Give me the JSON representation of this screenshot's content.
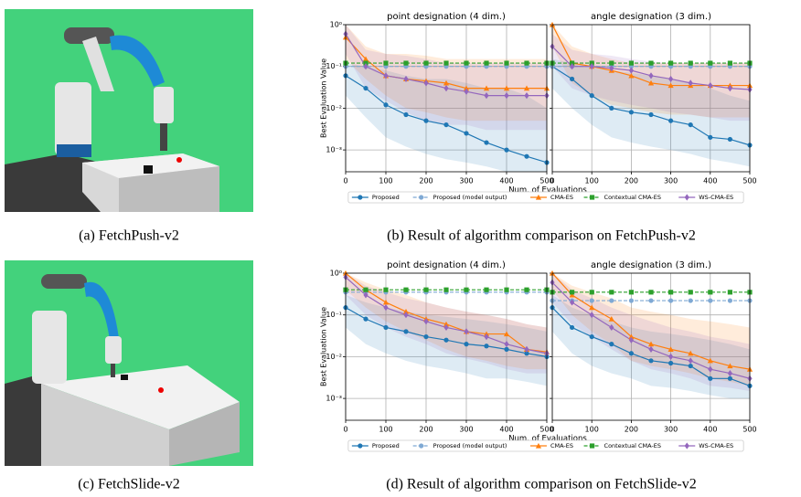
{
  "captions": [
    "(a) FetchPush-v2",
    "(b) Result of algorithm comparison on FetchPush-v2",
    "(c) FetchSlide-v2",
    "(d) Result of algorithm comparison on FetchSlide-v2"
  ],
  "chart_data": [
    {
      "type": "line",
      "title": "point designation (4 dim.)",
      "xlabel": "Num. of Evaluations",
      "ylabel": "Best Evaluation Value",
      "log_y": true,
      "grid": true,
      "legend": "below",
      "x": [
        0,
        50,
        100,
        150,
        200,
        250,
        300,
        350,
        400,
        450,
        500
      ],
      "xlim": [
        0,
        500
      ],
      "xticks": [
        0,
        100,
        200,
        300,
        400,
        500
      ],
      "ylim": [
        0.0003,
        1
      ],
      "yticks": [
        {
          "value": 1,
          "label": "10⁰"
        },
        {
          "value": 0.1,
          "label": "10⁻¹"
        },
        {
          "value": 0.01,
          "label": "10⁻²"
        },
        {
          "value": 0.001,
          "label": "10⁻³"
        }
      ],
      "series": [
        {
          "name": "Proposed",
          "color": "#1f77b4",
          "marker": "circle",
          "dash": false,
          "values": [
            0.06,
            0.03,
            0.012,
            0.007,
            0.005,
            0.004,
            0.0025,
            0.0015,
            0.001,
            0.0007,
            0.0005
          ],
          "lower": [
            0.02,
            0.006,
            0.002,
            0.0012,
            0.0008,
            0.0006,
            0.0005,
            0.0004,
            0.0003,
            0.0003,
            0.0003
          ],
          "upper": [
            0.12,
            0.1,
            0.08,
            0.06,
            0.05,
            0.05,
            0.04,
            0.03,
            0.03,
            0.02,
            0.01
          ]
        },
        {
          "name": "Proposed (model output)",
          "color": "#7fa9d4",
          "marker": "circle",
          "dash": true,
          "values": [
            0.1,
            0.1,
            0.1,
            0.1,
            0.1,
            0.1,
            0.1,
            0.1,
            0.1,
            0.1,
            0.1
          ]
        },
        {
          "name": "CMA-ES",
          "color": "#ff7f0e",
          "marker": "triangle",
          "dash": false,
          "values": [
            0.5,
            0.15,
            0.06,
            0.05,
            0.045,
            0.04,
            0.03,
            0.03,
            0.03,
            0.03,
            0.03
          ],
          "lower": [
            0.15,
            0.05,
            0.02,
            0.01,
            0.008,
            0.006,
            0.005,
            0.005,
            0.005,
            0.005,
            0.005
          ],
          "upper": [
            1,
            0.3,
            0.2,
            0.2,
            0.18,
            0.15,
            0.15,
            0.15,
            0.15,
            0.15,
            0.15
          ]
        },
        {
          "name": "Contextual CMA-ES",
          "color": "#2ca02c",
          "marker": "square",
          "dash": true,
          "values": [
            0.12,
            0.12,
            0.12,
            0.12,
            0.12,
            0.12,
            0.12,
            0.12,
            0.12,
            0.12,
            0.12
          ]
        },
        {
          "name": "WS-CMA-ES",
          "color": "#9467bd",
          "marker": "diamond",
          "dash": false,
          "values": [
            0.6,
            0.1,
            0.06,
            0.05,
            0.04,
            0.03,
            0.025,
            0.02,
            0.02,
            0.02,
            0.02
          ],
          "lower": [
            0.2,
            0.03,
            0.015,
            0.008,
            0.005,
            0.004,
            0.004,
            0.003,
            0.003,
            0.003,
            0.003
          ],
          "upper": [
            1,
            0.25,
            0.2,
            0.18,
            0.15,
            0.12,
            0.12,
            0.12,
            0.12,
            0.12,
            0.12
          ]
        }
      ]
    },
    {
      "type": "line",
      "title": "angle designation (3 dim.)",
      "log_y": true,
      "grid": true,
      "x": [
        0,
        50,
        100,
        150,
        200,
        250,
        300,
        350,
        400,
        450,
        500
      ],
      "xlim": [
        0,
        500
      ],
      "xticks": [
        0,
        100,
        200,
        300,
        400,
        500
      ],
      "ylim": [
        0.0003,
        1
      ],
      "yticks": [
        1,
        0.1,
        0.01,
        0.001
      ],
      "series": [
        {
          "color": "#1f77b4",
          "marker": "circle",
          "dash": false,
          "values": [
            0.1,
            0.05,
            0.02,
            0.01,
            0.008,
            0.007,
            0.005,
            0.004,
            0.002,
            0.0018,
            0.0013
          ],
          "lower": [
            0.03,
            0.01,
            0.004,
            0.002,
            0.0015,
            0.0012,
            0.001,
            0.0008,
            0.0006,
            0.0005,
            0.0004
          ],
          "upper": [
            0.15,
            0.12,
            0.1,
            0.08,
            0.07,
            0.06,
            0.05,
            0.04,
            0.03,
            0.02,
            0.015
          ]
        },
        {
          "color": "#7fa9d4",
          "marker": "circle",
          "dash": true,
          "values": [
            0.1,
            0.1,
            0.1,
            0.1,
            0.1,
            0.1,
            0.1,
            0.1,
            0.1,
            0.1,
            0.1
          ]
        },
        {
          "color": "#ff7f0e",
          "marker": "triangle",
          "dash": false,
          "values": [
            1,
            0.12,
            0.1,
            0.08,
            0.06,
            0.04,
            0.035,
            0.035,
            0.035,
            0.035,
            0.035
          ],
          "lower": [
            0.3,
            0.04,
            0.02,
            0.012,
            0.01,
            0.008,
            0.007,
            0.007,
            0.006,
            0.006,
            0.006
          ],
          "upper": [
            1,
            0.3,
            0.2,
            0.15,
            0.12,
            0.12,
            0.12,
            0.12,
            0.12,
            0.12,
            0.12
          ]
        },
        {
          "color": "#2ca02c",
          "marker": "square",
          "dash": true,
          "values": [
            0.12,
            0.12,
            0.12,
            0.12,
            0.12,
            0.12,
            0.12,
            0.12,
            0.12,
            0.12,
            0.12
          ]
        },
        {
          "color": "#9467bd",
          "marker": "diamond",
          "dash": false,
          "values": [
            0.3,
            0.1,
            0.1,
            0.09,
            0.08,
            0.06,
            0.05,
            0.04,
            0.035,
            0.03,
            0.028
          ],
          "lower": [
            0.1,
            0.03,
            0.02,
            0.015,
            0.012,
            0.01,
            0.008,
            0.007,
            0.006,
            0.005,
            0.005
          ],
          "upper": [
            0.6,
            0.25,
            0.2,
            0.18,
            0.15,
            0.13,
            0.12,
            0.12,
            0.12,
            0.12,
            0.12
          ]
        }
      ]
    },
    {
      "type": "line",
      "title": "point designation (4 dim.)",
      "xlabel": "Num. of Evaluations",
      "ylabel": "Best Evaluation Value",
      "log_y": true,
      "grid": true,
      "legend": "below",
      "x": [
        0,
        50,
        100,
        150,
        200,
        250,
        300,
        350,
        400,
        450,
        500
      ],
      "xlim": [
        0,
        500
      ],
      "xticks": [
        0,
        100,
        200,
        300,
        400,
        500
      ],
      "ylim": [
        0.0003,
        1
      ],
      "yticks": [
        {
          "value": 1,
          "label": "10⁰"
        },
        {
          "value": 0.1,
          "label": "10⁻¹"
        },
        {
          "value": 0.01,
          "label": "10⁻²"
        },
        {
          "value": 0.001,
          "label": "10⁻³"
        }
      ],
      "series": [
        {
          "name": "Proposed",
          "color": "#1f77b4",
          "marker": "circle",
          "dash": false,
          "values": [
            0.15,
            0.08,
            0.05,
            0.04,
            0.03,
            0.025,
            0.02,
            0.018,
            0.015,
            0.012,
            0.01
          ],
          "lower": [
            0.05,
            0.02,
            0.012,
            0.008,
            0.006,
            0.005,
            0.004,
            0.003,
            0.003,
            0.0025,
            0.002
          ],
          "upper": [
            0.3,
            0.2,
            0.15,
            0.12,
            0.1,
            0.09,
            0.08,
            0.07,
            0.06,
            0.05,
            0.04
          ]
        },
        {
          "name": "Proposed (model output)",
          "color": "#7fa9d4",
          "marker": "circle",
          "dash": true,
          "values": [
            0.35,
            0.35,
            0.35,
            0.35,
            0.35,
            0.35,
            0.35,
            0.35,
            0.35,
            0.35,
            0.35
          ]
        },
        {
          "name": "CMA-ES",
          "color": "#ff7f0e",
          "marker": "triangle",
          "dash": false,
          "values": [
            1,
            0.4,
            0.2,
            0.12,
            0.08,
            0.06,
            0.04,
            0.035,
            0.035,
            0.015,
            0.013
          ],
          "lower": [
            0.4,
            0.15,
            0.07,
            0.04,
            0.025,
            0.015,
            0.01,
            0.008,
            0.006,
            0.005,
            0.005
          ],
          "upper": [
            1,
            0.6,
            0.4,
            0.3,
            0.2,
            0.15,
            0.12,
            0.1,
            0.08,
            0.06,
            0.05
          ]
        },
        {
          "name": "Contextual CMA-ES",
          "color": "#2ca02c",
          "marker": "square",
          "dash": true,
          "values": [
            0.4,
            0.4,
            0.4,
            0.4,
            0.4,
            0.4,
            0.4,
            0.4,
            0.4,
            0.4,
            0.4
          ]
        },
        {
          "name": "WS-CMA-ES",
          "color": "#9467bd",
          "marker": "diamond",
          "dash": false,
          "values": [
            0.8,
            0.3,
            0.15,
            0.1,
            0.07,
            0.05,
            0.04,
            0.03,
            0.02,
            0.015,
            0.012
          ],
          "lower": [
            0.3,
            0.1,
            0.05,
            0.03,
            0.02,
            0.012,
            0.009,
            0.007,
            0.005,
            0.004,
            0.004
          ],
          "upper": [
            1,
            0.5,
            0.35,
            0.25,
            0.2,
            0.15,
            0.12,
            0.1,
            0.08,
            0.06,
            0.05
          ]
        }
      ]
    },
    {
      "type": "line",
      "title": "angle designation (3 dim.)",
      "log_y": true,
      "grid": true,
      "x": [
        0,
        50,
        100,
        150,
        200,
        250,
        300,
        350,
        400,
        450,
        500
      ],
      "xlim": [
        0,
        500
      ],
      "xticks": [
        0,
        100,
        200,
        300,
        400,
        500
      ],
      "ylim": [
        0.0003,
        1
      ],
      "yticks": [
        1,
        0.1,
        0.01,
        0.001
      ],
      "series": [
        {
          "color": "#1f77b4",
          "marker": "circle",
          "dash": false,
          "values": [
            0.15,
            0.05,
            0.03,
            0.02,
            0.012,
            0.008,
            0.007,
            0.006,
            0.003,
            0.003,
            0.002
          ],
          "lower": [
            0.04,
            0.012,
            0.006,
            0.004,
            0.003,
            0.002,
            0.0018,
            0.0015,
            0.0012,
            0.001,
            0.001
          ],
          "upper": [
            0.3,
            0.15,
            0.1,
            0.07,
            0.05,
            0.04,
            0.035,
            0.03,
            0.025,
            0.02,
            0.015
          ]
        },
        {
          "color": "#7fa9d4",
          "marker": "circle",
          "dash": true,
          "values": [
            0.22,
            0.22,
            0.22,
            0.22,
            0.22,
            0.22,
            0.22,
            0.22,
            0.22,
            0.22,
            0.22
          ]
        },
        {
          "color": "#ff7f0e",
          "marker": "triangle",
          "dash": false,
          "values": [
            1,
            0.3,
            0.15,
            0.08,
            0.03,
            0.02,
            0.015,
            0.012,
            0.008,
            0.006,
            0.005
          ],
          "lower": [
            0.4,
            0.1,
            0.04,
            0.02,
            0.008,
            0.006,
            0.005,
            0.004,
            0.003,
            0.0025,
            0.002
          ],
          "upper": [
            1,
            0.5,
            0.35,
            0.25,
            0.15,
            0.12,
            0.1,
            0.08,
            0.07,
            0.06,
            0.05
          ]
        },
        {
          "color": "#2ca02c",
          "marker": "square",
          "dash": true,
          "values": [
            0.35,
            0.35,
            0.35,
            0.35,
            0.35,
            0.35,
            0.35,
            0.35,
            0.35,
            0.35,
            0.35
          ]
        },
        {
          "color": "#9467bd",
          "marker": "diamond",
          "dash": false,
          "values": [
            0.6,
            0.2,
            0.1,
            0.05,
            0.025,
            0.015,
            0.01,
            0.008,
            0.005,
            0.004,
            0.003
          ],
          "lower": [
            0.2,
            0.06,
            0.03,
            0.015,
            0.008,
            0.005,
            0.004,
            0.003,
            0.002,
            0.0018,
            0.0015
          ],
          "upper": [
            1,
            0.4,
            0.25,
            0.15,
            0.1,
            0.07,
            0.05,
            0.04,
            0.03,
            0.025,
            0.02
          ]
        }
      ]
    }
  ]
}
